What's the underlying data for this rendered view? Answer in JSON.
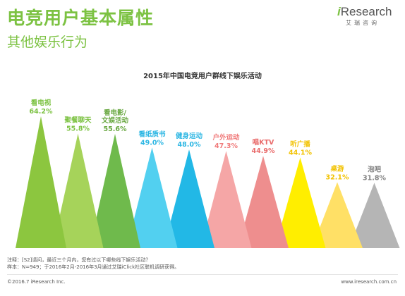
{
  "header": {
    "title": "电竞用户基本属性",
    "subtitle": "其他娱乐行为"
  },
  "logo": {
    "prefix": "i",
    "name": "Research",
    "sub": "艾瑞咨询"
  },
  "chart_data": {
    "type": "bar",
    "title": "2015年中国电竞用户群线下娱乐活动",
    "categories": [
      "看电视",
      "聚餐聊天",
      "看电影/\n文娱活动",
      "看纸质书",
      "健身运动",
      "户外运动",
      "唱KTV",
      "听广播",
      "桌游",
      "泡吧"
    ],
    "values": [
      64.2,
      55.8,
      55.6,
      49.0,
      48.0,
      47.3,
      44.9,
      44.1,
      32.1,
      31.8
    ],
    "value_labels": [
      "64.2%",
      "55.8%",
      "55.6%",
      "49.0%",
      "48.0%",
      "47.3%",
      "44.9%",
      "44.1%",
      "32.1%",
      "31.8%"
    ],
    "colors": [
      "#8cc63f",
      "#a6d35a",
      "#6fba4c",
      "#52d0f0",
      "#22b8e6",
      "#f5a6a6",
      "#ee8e8e",
      "#ffee00",
      "#ffe066",
      "#b5b5b5"
    ],
    "label_colors": [
      "#7cc242",
      "#7cc242",
      "#6aa842",
      "#2bb6e3",
      "#2bb6e3",
      "#f07a7a",
      "#e96b6b",
      "#f2c200",
      "#f2c200",
      "#7f7f7f"
    ],
    "ylim": [
      0,
      70
    ],
    "grid": false,
    "legend": "none"
  },
  "notes": {
    "line1": "注释：[S2]请问，最近三个月内，您有过以下哪些线下娱乐活动？",
    "line2": "样本：N=949；于2016年2月-2016年3月通过艾瑞iClick社区联机调研获得。"
  },
  "footer": {
    "left": "©2016.7 iResearch Inc.",
    "right": "www.iresearch.com.cn"
  }
}
